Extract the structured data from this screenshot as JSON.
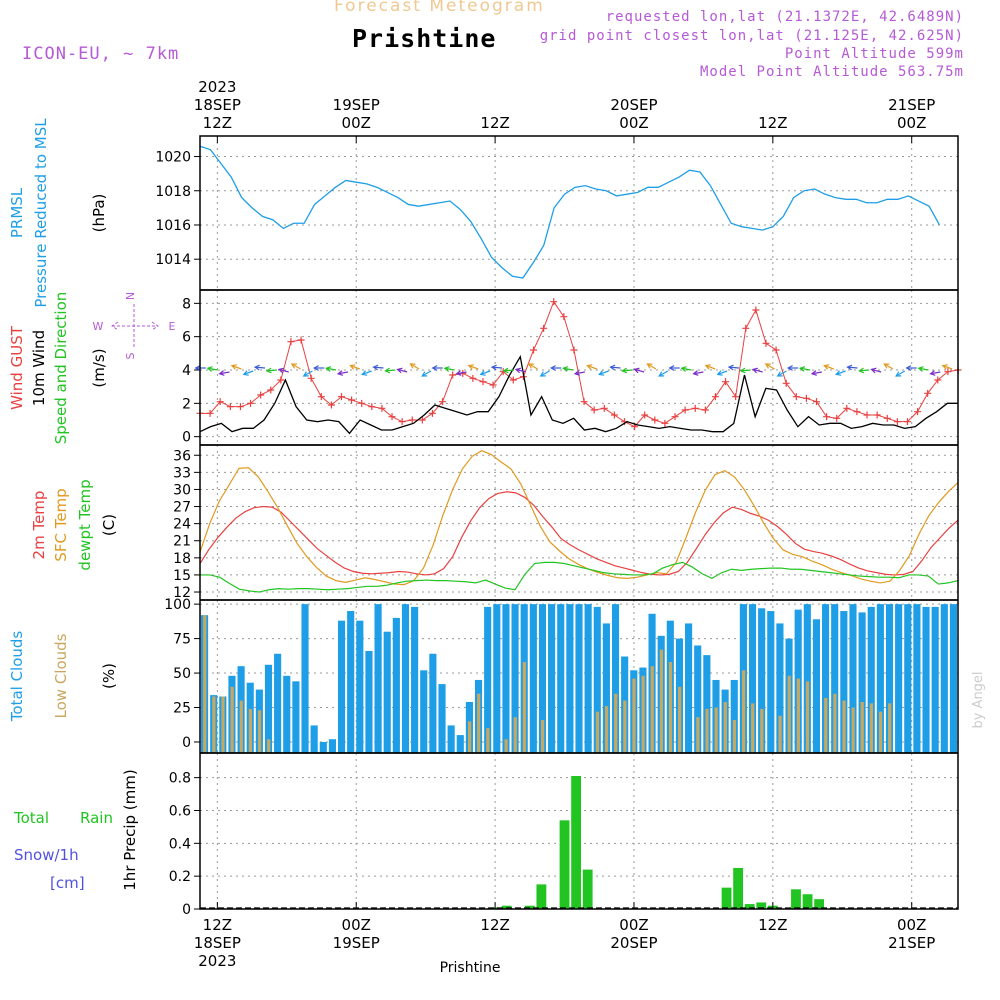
{
  "header": {
    "subtitle": "Forecast Meteogram",
    "title": "Prishtine",
    "model": "ICON-EU, ~ 7km",
    "requested": "requested lon,lat (21.1372E, 42.6489N)",
    "grid_point": "grid point closest lon,lat (21.125E, 42.625N)",
    "point_altitude": "Point Altitude 599m",
    "model_altitude": "Model Point Altitude 563.75m"
  },
  "colors": {
    "pressure": "#1e9ee6",
    "gust": "#e84040",
    "wind": "#000000",
    "temp": "#e84040",
    "sfc_temp": "#e09a20",
    "dewpt": "#22c422",
    "total_clouds": "#1e9ee6",
    "low_clouds": "#c8a860",
    "rain": "#22c422",
    "snow": "#5050e0",
    "header_purple": "#b65ad6",
    "grid": "#9a9a9a"
  },
  "time_axis": {
    "top": {
      "year": "2023",
      "ticks": [
        {
          "day": "18SEP",
          "hour": "12Z"
        },
        {
          "day": "19SEP",
          "hour": "00Z"
        },
        {
          "day": "",
          "hour": "12Z"
        },
        {
          "day": "20SEP",
          "hour": "00Z"
        },
        {
          "day": "",
          "hour": "12Z"
        },
        {
          "day": "21SEP",
          "hour": "00Z"
        }
      ]
    },
    "bottom": {
      "year": "2023",
      "ticks": [
        {
          "hour": "12Z",
          "day": "18SEP"
        },
        {
          "hour": "00Z",
          "day": "19SEP"
        },
        {
          "hour": "12Z",
          "day": ""
        },
        {
          "hour": "00Z",
          "day": "20SEP"
        },
        {
          "hour": "12Z",
          "day": ""
        },
        {
          "hour": "00Z",
          "day": "21SEP"
        }
      ]
    },
    "footer": "Prishtine",
    "credit": "by Angel"
  },
  "panels": {
    "pressure": {
      "label1": "PRMSL",
      "label2": "Pressure Reduced to MSL",
      "unit": "(hPa)",
      "ticks": [
        "1014",
        "1016",
        "1018",
        "1020"
      ]
    },
    "wind": {
      "label1": "Wind GUST",
      "label2": "10m Wind",
      "label3": "Speed and Direction",
      "unit": "(m/s)",
      "ticks": [
        "0",
        "2",
        "4",
        "6",
        "8"
      ],
      "compass": {
        "n": "N",
        "s": "S",
        "w": "W",
        "e": "E"
      }
    },
    "temp": {
      "label1": "2m Temp",
      "label2": "SFC Temp",
      "label3": "dewpt Temp",
      "unit": "(C)",
      "ticks": [
        "12",
        "15",
        "18",
        "21",
        "24",
        "27",
        "30",
        "33",
        "36"
      ]
    },
    "clouds": {
      "label1": "Total Clouds",
      "label2": "Low Clouds",
      "unit": "(%)",
      "ticks": [
        "0",
        "25",
        "50",
        "75",
        "100"
      ]
    },
    "precip": {
      "label1": "Total",
      "label1b": "Rain",
      "label2": "Snow/1h",
      "label3": "[cm]",
      "unit": "1hr Precip (mm)",
      "ticks": [
        "0",
        "0.2",
        "0.4",
        "0.6",
        "0.8"
      ]
    }
  },
  "chart_data": [
    {
      "type": "line",
      "title": "PRMSL Pressure Reduced to MSL",
      "ylabel": "hPa",
      "ylim": [
        1012.2,
        1021.2
      ],
      "x_start_hour": -1.5,
      "x_range_hours": [
        -1.5,
        64
      ],
      "series": [
        {
          "name": "PRMSL",
          "values": [
            1020.6,
            1020.4,
            1019.6,
            1018.8,
            1017.6,
            1017.0,
            1016.5,
            1016.3,
            1015.8,
            1016.1,
            1016.1,
            1017.2,
            1017.7,
            1018.2,
            1018.6,
            1018.5,
            1018.4,
            1018.2,
            1017.9,
            1017.6,
            1017.2,
            1017.1,
            1017.2,
            1017.3,
            1017.4,
            1016.9,
            1016.2,
            1015.2,
            1014.1,
            1013.5,
            1013.0,
            1012.9,
            1013.8,
            1014.8,
            1017.0,
            1017.8,
            1018.2,
            1018.3,
            1018.1,
            1018.0,
            1017.7,
            1017.8,
            1017.9,
            1018.2,
            1018.2,
            1018.5,
            1018.8,
            1019.2,
            1019.1,
            1018.3,
            1017.2,
            1016.1,
            1015.9,
            1015.8,
            1015.7,
            1015.9,
            1016.5,
            1017.6,
            1018.0,
            1018.1,
            1017.8,
            1017.6,
            1017.5,
            1017.5,
            1017.3,
            1017.3,
            1017.5,
            1017.5,
            1017.7,
            1017.4,
            1017.1,
            1016.0
          ]
        }
      ]
    },
    {
      "type": "line",
      "title": "Wind",
      "ylabel": "m/s",
      "ylim": [
        -0.5,
        8.8
      ],
      "x_start_hour": -1.5,
      "x_range_hours": [
        -1.5,
        64
      ],
      "series": [
        {
          "name": "Wind GUST",
          "values": [
            1.4,
            1.4,
            2.1,
            1.8,
            1.8,
            2.0,
            2.5,
            2.8,
            3.4,
            5.7,
            5.8,
            3.5,
            2.4,
            1.9,
            2.4,
            2.2,
            2.0,
            1.8,
            1.7,
            1.2,
            0.9,
            1.0,
            1.0,
            1.4,
            2.1,
            3.7,
            3.8,
            3.5,
            3.3,
            3.1,
            3.9,
            3.4,
            3.6,
            5.2,
            6.5,
            8.1,
            7.2,
            5.2,
            2.1,
            1.6,
            1.7,
            1.3,
            0.9,
            0.6,
            1.3,
            1.0,
            0.8,
            1.2,
            1.6,
            1.7,
            1.6,
            2.4,
            3.3,
            2.4,
            6.5,
            7.6,
            5.6,
            5.2,
            3.2,
            2.4,
            2.3,
            2.1,
            1.2,
            1.1,
            1.7,
            1.5,
            1.3,
            1.3,
            1.1,
            0.9,
            0.9,
            1.5,
            2.6,
            3.4,
            3.9,
            4.0
          ]
        },
        {
          "name": "10m Wind",
          "values": [
            0.3,
            0.6,
            0.8,
            0.3,
            0.5,
            0.5,
            1.0,
            2.0,
            3.4,
            1.8,
            1.0,
            0.9,
            1.0,
            0.9,
            0.2,
            1.0,
            0.7,
            0.4,
            0.4,
            0.6,
            0.8,
            1.3,
            1.9,
            1.7,
            1.5,
            1.3,
            1.5,
            1.5,
            2.4,
            3.7,
            4.8,
            1.3,
            2.4,
            1.0,
            0.8,
            1.1,
            0.4,
            0.5,
            0.3,
            0.5,
            0.9,
            0.7,
            0.6,
            0.5,
            0.6,
            0.5,
            0.4,
            0.4,
            0.3,
            0.3,
            0.8,
            3.7,
            1.2,
            2.9,
            2.8,
            1.6,
            0.6,
            1.2,
            0.7,
            0.8,
            0.8,
            0.5,
            0.6,
            0.8,
            0.7,
            0.7,
            0.5,
            0.6,
            1.1,
            1.5,
            2.0,
            2.0
          ]
        }
      ]
    },
    {
      "type": "line",
      "title": "Temperature",
      "ylabel": "C",
      "ylim": [
        10.6,
        37.8
      ],
      "x_start_hour": -1.5,
      "x_range_hours": [
        -1.5,
        64
      ],
      "series": [
        {
          "name": "2m Temp",
          "values": [
            17.0,
            19.5,
            21.6,
            23.4,
            25.0,
            26.1,
            26.8,
            27.0,
            26.9,
            26.0,
            24.4,
            22.8,
            21.2,
            19.6,
            18.4,
            17.2,
            16.2,
            15.6,
            15.3,
            15.2,
            15.3,
            15.4,
            15.6,
            15.5,
            15.2,
            15.0,
            15.2,
            16.1,
            18.2,
            21.6,
            24.5,
            26.8,
            28.4,
            29.3,
            29.6,
            29.4,
            28.6,
            27.2,
            25.2,
            23.4,
            21.4,
            20.3,
            19.4,
            18.6,
            17.8,
            17.2,
            16.6,
            16.2,
            15.8,
            15.4,
            15.1,
            15.0,
            15.1,
            15.6,
            17.2,
            19.6,
            22.1,
            24.2,
            25.9,
            26.9,
            26.5,
            25.8,
            25.3,
            24.6,
            23.5,
            22.1,
            20.5,
            19.5,
            19.1,
            18.8,
            18.3,
            17.7,
            16.9,
            16.2,
            15.7,
            15.4,
            15.1,
            15.0,
            15.1,
            15.6,
            17.5,
            19.8,
            21.5,
            23.2,
            24.6
          ]
        },
        {
          "name": "SFC Temp",
          "values": [
            19.0,
            24.0,
            28.0,
            30.8,
            33.7,
            33.8,
            32.2,
            29.6,
            26.8,
            23.6,
            20.5,
            18.2,
            16.3,
            14.8,
            14.0,
            13.7,
            14.1,
            14.5,
            14.2,
            13.8,
            13.4,
            13.3,
            14.0,
            16.2,
            20.3,
            25.5,
            30.0,
            33.6,
            35.8,
            36.8,
            36.1,
            34.8,
            33.6,
            31.0,
            27.3,
            23.6,
            20.8,
            19.2,
            17.8,
            16.8,
            16.0,
            15.4,
            14.9,
            14.5,
            14.4,
            14.6,
            15.0,
            15.4,
            15.2,
            17.2,
            21.5,
            26.0,
            29.9,
            32.6,
            33.3,
            32.2,
            30.0,
            27.2,
            24.1,
            21.4,
            19.4,
            18.6,
            18.2,
            17.4,
            16.8,
            16.0,
            15.4,
            14.9,
            14.3,
            13.9,
            13.6,
            13.9,
            15.8,
            18.4,
            22.2,
            25.4,
            27.7,
            29.6,
            31.2
          ]
        },
        {
          "name": "dewpt Temp",
          "values": [
            15.0,
            15.0,
            14.6,
            13.5,
            12.5,
            12.2,
            12.0,
            12.4,
            12.6,
            12.5,
            12.6,
            12.6,
            12.5,
            12.4,
            12.5,
            12.6,
            12.8,
            13.0,
            13.0,
            13.2,
            13.6,
            13.9,
            14.0,
            14.1,
            14.0,
            14.0,
            13.9,
            13.8,
            13.6,
            14.1,
            13.4,
            12.7,
            12.4,
            15.1,
            17.0,
            17.2,
            17.2,
            17.0,
            16.6,
            16.2,
            15.8,
            15.4,
            15.2,
            15.1,
            15.0,
            15.0,
            15.2,
            16.2,
            16.8,
            17.2,
            16.4,
            15.2,
            14.4,
            15.4,
            16.0,
            15.8,
            16.0,
            16.1,
            16.2,
            16.2,
            16.0,
            16.0,
            15.8,
            15.6,
            15.4,
            15.2,
            15.0,
            14.8,
            14.7,
            14.6,
            14.6,
            14.5,
            15.0,
            15.0,
            14.8,
            13.4,
            13.6,
            14.0
          ]
        }
      ]
    },
    {
      "type": "bar",
      "title": "Clouds",
      "ylabel": "%",
      "ylim": [
        -8,
        103
      ],
      "x_start_hour": -1.5,
      "x_range_hours": [
        -1.5,
        64
      ],
      "series": [
        {
          "name": "Total Clouds",
          "values": [
            92,
            34,
            33,
            48,
            55,
            43,
            38,
            56,
            64,
            48,
            44,
            100,
            12,
            0,
            2,
            88,
            95,
            88,
            66,
            100,
            80,
            90,
            100,
            98,
            52,
            64,
            42,
            12,
            5,
            29,
            45,
            98,
            100,
            100,
            100,
            100,
            100,
            100,
            100,
            100,
            100,
            100,
            100,
            98,
            86,
            100,
            62,
            52,
            54,
            93,
            77,
            88,
            75,
            86,
            70,
            63,
            45,
            38,
            45,
            100,
            100,
            97,
            95,
            86,
            75,
            96,
            100,
            89,
            100,
            100,
            95,
            100,
            94,
            98,
            100,
            100,
            100,
            100,
            100,
            98,
            98,
            100,
            100
          ]
        },
        {
          "name": "Low Clouds",
          "values": [
            92,
            33,
            33,
            40,
            30,
            24,
            23,
            2,
            0,
            0,
            0,
            0,
            0,
            0,
            0,
            0,
            0,
            0,
            0,
            0,
            0,
            0,
            0,
            0,
            0,
            0,
            0,
            0,
            0,
            15,
            35,
            10,
            0,
            2,
            18,
            58,
            0,
            16,
            0,
            0,
            0,
            0,
            0,
            22,
            26,
            35,
            30,
            46,
            48,
            55,
            67,
            58,
            40,
            0,
            18,
            24,
            25,
            29,
            16,
            52,
            28,
            24,
            0,
            19,
            48,
            46,
            44,
            0,
            32,
            35,
            30,
            25,
            29,
            28,
            22,
            28,
            0,
            0,
            0,
            0,
            0,
            0,
            0
          ]
        }
      ]
    },
    {
      "type": "bar",
      "title": "1hr Precip",
      "ylabel": "mm",
      "ylim": [
        0,
        0.95
      ],
      "x_start_hour": -1.5,
      "x_range_hours": [
        -1.5,
        64
      ],
      "series": [
        {
          "name": "Total Rain",
          "points": [
            [
              24,
              0.01
            ],
            [
              25,
              0.02
            ],
            [
              27,
              0.02
            ],
            [
              28,
              0.15
            ],
            [
              30,
              0.54
            ],
            [
              31,
              0.81
            ],
            [
              32,
              0.24
            ],
            [
              44,
              0.13
            ],
            [
              45,
              0.25
            ],
            [
              46,
              0.03
            ],
            [
              47,
              0.04
            ],
            [
              48,
              0.02
            ],
            [
              50,
              0.12
            ],
            [
              51,
              0.09
            ],
            [
              52,
              0.06
            ]
          ]
        }
      ]
    }
  ]
}
